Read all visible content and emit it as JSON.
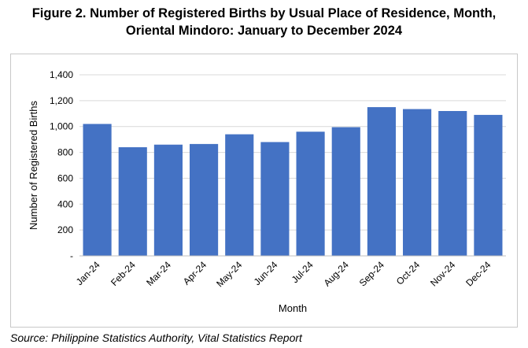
{
  "figure": {
    "title_line1": "Figure 2. Number of Registered Births by Usual Place of Residence, Month,",
    "title_line2": "Oriental Mindoro: January to December 2024",
    "source": "Source: Philippine Statistics Authority, Vital Statistics Report"
  },
  "chart_data": {
    "type": "bar",
    "categories": [
      "Jan-24",
      "Feb-24",
      "Mar-24",
      "Apr-24",
      "May-24",
      "Jun-24",
      "Jul-24",
      "Aug-24",
      "Sep-24",
      "Oct-24",
      "Nov-24",
      "Dec-24"
    ],
    "values": [
      1020,
      840,
      860,
      865,
      940,
      880,
      960,
      995,
      1150,
      1135,
      1120,
      1090
    ],
    "xlabel": "Month",
    "ylabel": "Number of Registered Births",
    "ylim": [
      0,
      1400
    ],
    "yticks": [
      0,
      200,
      400,
      600,
      800,
      1000,
      1200,
      1400
    ],
    "ytick_labels": [
      "-",
      "200",
      "400",
      "600",
      "800",
      "1,000",
      "1,200",
      "1,400"
    ],
    "grid": true,
    "legend": "none",
    "bar_color": "#4472C4",
    "grid_color": "#d9d9d9"
  }
}
